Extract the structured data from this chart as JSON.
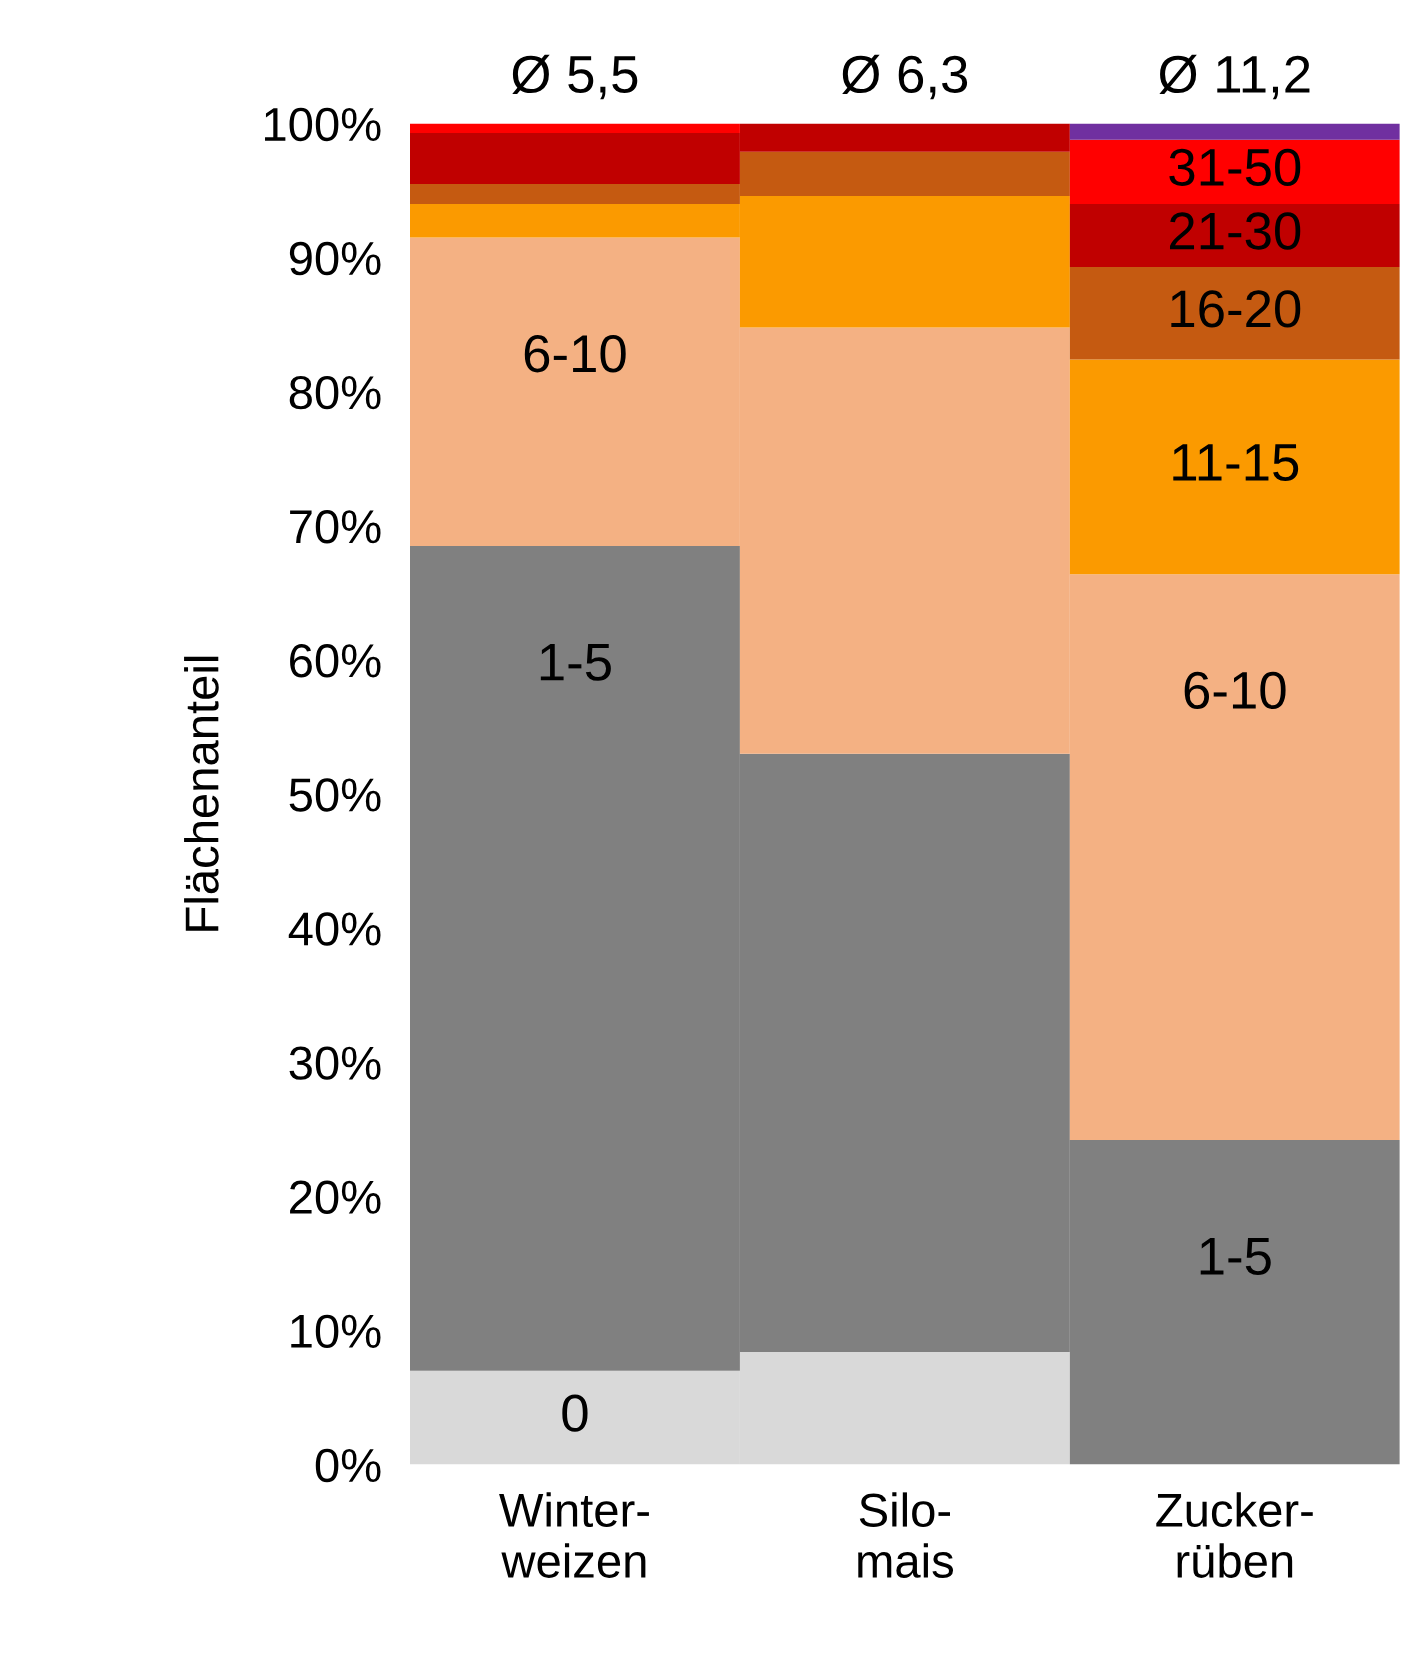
{
  "chart_data": {
    "type": "bar",
    "stacked": true,
    "ylabel": "Flächenanteil",
    "categories": [
      "Winter-\nweizen",
      "Silo-\nmais",
      "Zucker-\nrüben"
    ],
    "series": [
      {
        "color": "#d9d9d9",
        "values": [
          7,
          8.4,
          0
        ]
      },
      {
        "color": "#808080",
        "values": [
          61.5,
          44.6,
          24.2
        ]
      },
      {
        "color": "#f4b183",
        "values": [
          23,
          31.8,
          42.2
        ]
      },
      {
        "color": "#fb9a00",
        "values": [
          2.5,
          9.8,
          16
        ]
      },
      {
        "color": "#c55a11",
        "values": [
          1.5,
          3.3,
          6.9
        ]
      },
      {
        "color": "#c00000",
        "values": [
          3.8,
          2.1,
          4.7
        ]
      },
      {
        "color": "#ff0000",
        "values": [
          0.7,
          0,
          4.8
        ]
      },
      {
        "color": "#7030a0",
        "values": [
          0,
          0,
          1.2
        ]
      }
    ],
    "annotations": [
      "Ø 5,5",
      "Ø 6,3",
      "Ø 11,2",
      {
        "text": "0",
        "x": "Winter-\nweizen",
        "y": 7
      },
      {
        "text": "1-5",
        "x": "Winter-\nweizen",
        "y": 68.5
      },
      {
        "text": "6-10",
        "x": "Winter-\nweizen",
        "y": 91.5
      },
      {
        "text": "1-5",
        "x": "Zucker-\nrüben",
        "y": 24.2
      },
      {
        "text": "6-10",
        "x": "Zucker-\nrüben",
        "y": 66.4
      },
      {
        "text": "11-15",
        "x": "Zucker-\nrüben",
        "y": 82.4
      },
      {
        "text": "16-20",
        "x": "Zucker-\nrüben",
        "y": 89.3
      },
      {
        "text": "21-30",
        "x": "Zucker-\nrüben",
        "y": 94
      },
      {
        "text": "31-50",
        "x": "Zucker-\nrüben",
        "y": 98.8
      }
    ],
    "ylim": [
      0,
      100
    ],
    "yticks": [
      {
        "value": 0,
        "label": "0%"
      },
      {
        "value": 10,
        "label": "10%"
      },
      {
        "value": 20,
        "label": "20%"
      },
      {
        "value": 30,
        "label": "30%"
      },
      {
        "value": 40,
        "label": "40%"
      },
      {
        "value": 50,
        "label": "50%"
      },
      {
        "value": 60,
        "label": "60%"
      },
      {
        "value": 70,
        "label": "70%"
      },
      {
        "value": 80,
        "label": "80%"
      },
      {
        "value": 90,
        "label": "90%"
      },
      {
        "value": 100,
        "label": "100%"
      }
    ]
  }
}
